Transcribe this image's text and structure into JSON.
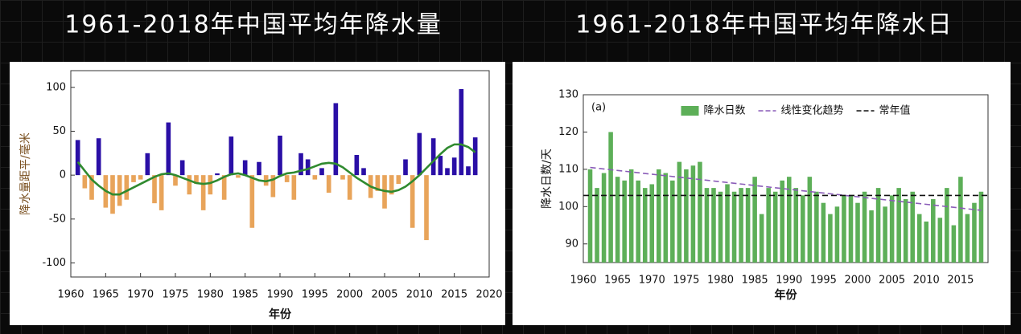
{
  "chart_data": [
    {
      "type": "bar",
      "title": "1961-2018年中国平均年降水量",
      "x_label": "年份",
      "y_label": "降水量距平/毫米",
      "x": [
        1961,
        1962,
        1963,
        1964,
        1965,
        1966,
        1967,
        1968,
        1969,
        1970,
        1971,
        1972,
        1973,
        1974,
        1975,
        1976,
        1977,
        1978,
        1979,
        1980,
        1981,
        1982,
        1983,
        1984,
        1985,
        1986,
        1987,
        1988,
        1989,
        1990,
        1991,
        1992,
        1993,
        1994,
        1995,
        1996,
        1997,
        1998,
        1999,
        2000,
        2001,
        2002,
        2003,
        2004,
        2005,
        2006,
        2007,
        2008,
        2009,
        2010,
        2011,
        2012,
        2013,
        2014,
        2015,
        2016,
        2017,
        2018
      ],
      "series": [
        {
          "type": "bar",
          "color": "#2a0fa6",
          "negative_color": "#e8a45a",
          "values": [
            40,
            -15,
            -28,
            42,
            -37,
            -44,
            -35,
            -28,
            -8,
            -5,
            25,
            -32,
            -40,
            60,
            -12,
            17,
            -22,
            -10,
            -40,
            -22,
            2,
            -28,
            44,
            -3,
            17,
            -60,
            15,
            -12,
            -25,
            45,
            -8,
            -28,
            25,
            18,
            -5,
            8,
            -20,
            82,
            -5,
            -28,
            23,
            8,
            -26,
            -18,
            -38,
            -22,
            -10,
            18,
            -60,
            48,
            -74,
            42,
            22,
            8,
            20,
            98,
            10,
            43
          ]
        },
        {
          "type": "line",
          "color": "#2f8a2f",
          "values": [
            15,
            5,
            -5,
            -12,
            -18,
            -22,
            -22,
            -18,
            -14,
            -10,
            -6,
            -2,
            1,
            2,
            0,
            -3,
            -6,
            -9,
            -10,
            -9,
            -6,
            -2,
            1,
            2,
            0,
            -3,
            -6,
            -7,
            -5,
            -1,
            2,
            3,
            5,
            7,
            10,
            13,
            14,
            13,
            9,
            3,
            -3,
            -8,
            -13,
            -16,
            -18,
            -19,
            -17,
            -13,
            -7,
            0,
            8,
            16,
            24,
            31,
            35,
            35,
            32,
            26
          ]
        }
      ],
      "xlim": [
        1960,
        2020
      ],
      "xticks": [
        1960,
        1965,
        1970,
        1975,
        1980,
        1985,
        1990,
        1995,
        2000,
        2005,
        2010,
        2015,
        2020
      ],
      "ylim": [
        -116,
        119
      ],
      "yticks": [
        -100,
        -50,
        0,
        50,
        100
      ]
    },
    {
      "type": "bar",
      "title": "1961-2018年中国平均年降水日",
      "x_label": "年份",
      "y_label": "降水日数/天",
      "annotation": "(a)",
      "legend": "upper center",
      "x": [
        1961,
        1962,
        1963,
        1964,
        1965,
        1966,
        1967,
        1968,
        1969,
        1970,
        1971,
        1972,
        1973,
        1974,
        1975,
        1976,
        1977,
        1978,
        1979,
        1980,
        1981,
        1982,
        1983,
        1984,
        1985,
        1986,
        1987,
        1988,
        1989,
        1990,
        1991,
        1992,
        1993,
        1994,
        1995,
        1996,
        1997,
        1998,
        1999,
        2000,
        2001,
        2002,
        2003,
        2004,
        2005,
        2006,
        2007,
        2008,
        2009,
        2010,
        2011,
        2012,
        2013,
        2014,
        2015,
        2016,
        2017,
        2018
      ],
      "series": [
        {
          "type": "bar",
          "name": "降水日数",
          "color": "#5daf58",
          "values": [
            110,
            105,
            109,
            120,
            108,
            107,
            110,
            107,
            105,
            106,
            110,
            109,
            107,
            112,
            110,
            111,
            112,
            105,
            105,
            104,
            106,
            104,
            105,
            105,
            108,
            98,
            105,
            104,
            107,
            108,
            105,
            103,
            108,
            104,
            101,
            98,
            100,
            103,
            103,
            101,
            104,
            99,
            105,
            100,
            103,
            105,
            102,
            104,
            98,
            96,
            102,
            97,
            105,
            95,
            108,
            98,
            101,
            104
          ]
        },
        {
          "type": "line",
          "name": "线性变化趋势",
          "color": "#8a5cb8",
          "dash": true,
          "x": [
            1961,
            2018
          ],
          "values": [
            110.5,
            99
          ]
        },
        {
          "type": "line",
          "name": "常年值",
          "color": "#111111",
          "dash": true,
          "x": [
            1960,
            2019
          ],
          "values": [
            103,
            103
          ]
        }
      ],
      "xlim": [
        1960,
        2019
      ],
      "xticks": [
        1960,
        1965,
        1970,
        1975,
        1980,
        1985,
        1990,
        1995,
        2000,
        2005,
        2010,
        2015
      ],
      "ylim": [
        85,
        130
      ],
      "yticks": [
        90,
        100,
        110,
        120,
        130
      ]
    }
  ]
}
